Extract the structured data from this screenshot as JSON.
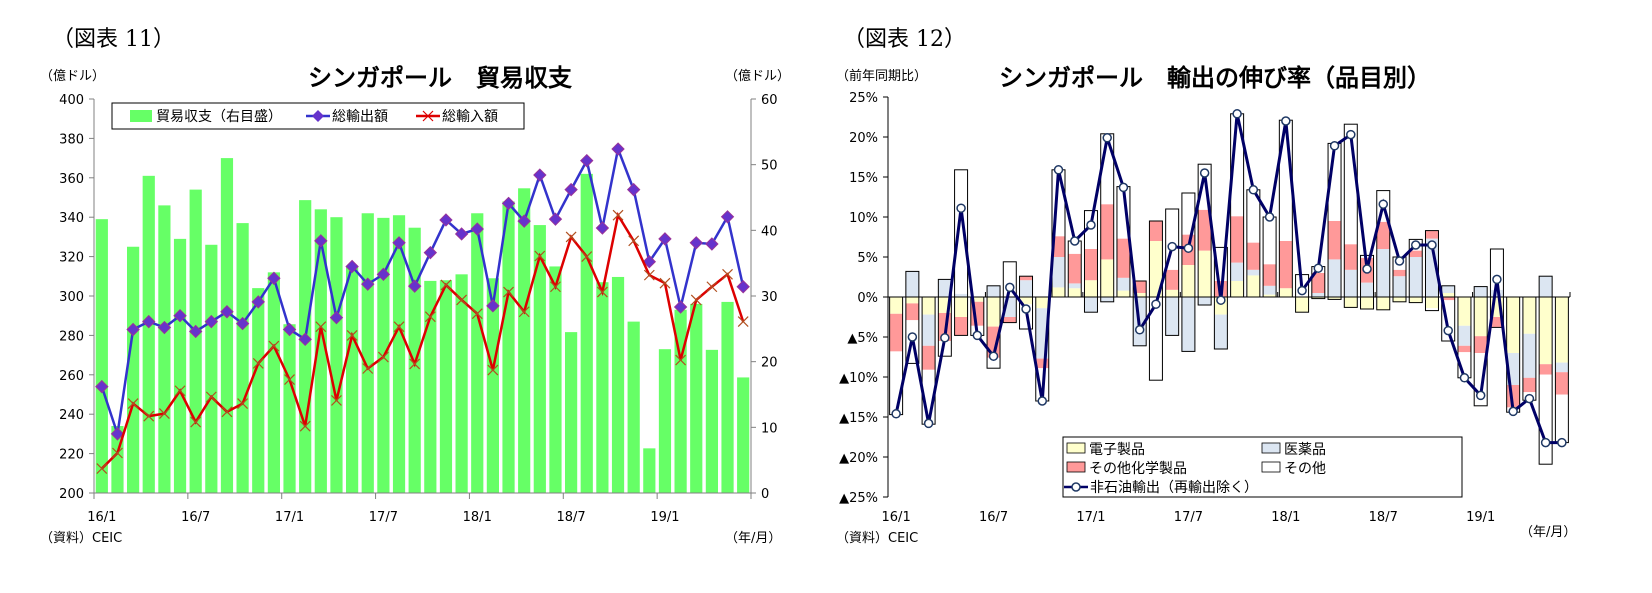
{
  "chart_data": [
    {
      "type": "bar+line",
      "figure_label": "（図表 11）",
      "title": "シンガポール　貿易収支",
      "ylabel_left": "（億ドル）",
      "ylabel_right": "（億ドル）",
      "xlabel": "（年/月）",
      "source": "（資料）CEIC",
      "ylim_left": [
        200,
        400
      ],
      "yticks_left": [
        200,
        220,
        240,
        260,
        280,
        300,
        320,
        340,
        360,
        380,
        400
      ],
      "ylim_right": [
        0,
        60
      ],
      "yticks_right": [
        0,
        10,
        20,
        30,
        40,
        50,
        60
      ],
      "x_tick_labels": [
        "16/1",
        "16/7",
        "17/1",
        "17/7",
        "18/1",
        "18/7",
        "19/1"
      ],
      "categories": [
        "16/1",
        "16/2",
        "16/3",
        "16/4",
        "16/5",
        "16/6",
        "16/7",
        "16/8",
        "16/9",
        "16/10",
        "16/11",
        "16/12",
        "17/1",
        "17/2",
        "17/3",
        "17/4",
        "17/5",
        "17/6",
        "17/7",
        "17/8",
        "17/9",
        "17/10",
        "17/11",
        "17/12",
        "18/1",
        "18/2",
        "18/3",
        "18/4",
        "18/5",
        "18/6",
        "18/7",
        "18/8",
        "18/9",
        "18/10",
        "18/11",
        "18/12",
        "19/1",
        "19/2",
        "19/3",
        "19/4",
        "19/5",
        "19/6"
      ],
      "legend_position": "top",
      "grid": false,
      "series": [
        {
          "name": "貿易収支（右目盛）",
          "type": "bar",
          "axis": "right",
          "color": "#66FF66",
          "values": [
            41.7,
            10.2,
            37.5,
            48.3,
            43.8,
            38.7,
            46.2,
            37.8,
            51.0,
            41.1,
            31.2,
            33.6,
            25.7,
            44.6,
            43.2,
            42.0,
            34.4,
            42.6,
            41.9,
            42.3,
            40.4,
            32.3,
            32.4,
            33.3,
            42.6,
            32.7,
            44.4,
            46.4,
            40.8,
            34.5,
            24.5,
            48.6,
            32.1,
            32.9,
            26.1,
            6.8,
            21.9,
            27.9,
            28.8,
            21.8,
            29.1,
            17.6
          ]
        },
        {
          "name": "総輸出額",
          "type": "line",
          "axis": "left",
          "color": "#3333CC",
          "marker": "diamond",
          "values": [
            254,
            230,
            283,
            287,
            284,
            290,
            282,
            287,
            292,
            286,
            297,
            309,
            283,
            278,
            328,
            289,
            315,
            306,
            311,
            327,
            305,
            322,
            338.6,
            331.5,
            334,
            295,
            347,
            338,
            361.4,
            339,
            354,
            368.7,
            334.5,
            374.6,
            354,
            317.4,
            329,
            294.4,
            327,
            326.4,
            340.2,
            304.7
          ]
        },
        {
          "name": "総輸入額",
          "type": "line",
          "axis": "left",
          "color": "#DD0000",
          "marker": "x",
          "values": [
            212.4,
            220.3,
            245.4,
            239,
            240.3,
            251.9,
            236,
            248.8,
            241.2,
            245.4,
            265.8,
            274.6,
            257.6,
            233.9,
            284.4,
            247,
            280,
            263.2,
            269,
            284.4,
            265.5,
            289.5,
            305.6,
            298,
            291,
            262.4,
            302,
            292,
            320.3,
            304.7,
            330,
            320,
            302,
            341,
            328,
            310.6,
            306.5,
            267.5,
            298,
            304.7,
            311,
            287
          ]
        }
      ]
    },
    {
      "type": "stacked-bar+line",
      "figure_label": "（図表 12）",
      "title": "シンガポール　輸出の伸び率（品目別）",
      "ylabel": "（前年同期比）",
      "xlabel": "（年/月）",
      "source": "（資料）CEIC",
      "ylim": [
        -25,
        25
      ],
      "yticks": [
        -25,
        -20,
        -15,
        -10,
        -5,
        0,
        5,
        10,
        15,
        20,
        25
      ],
      "ytick_labels": [
        "▲25%",
        "▲20%",
        "▲15%",
        "▲10%",
        "▲5%",
        "0%",
        "5%",
        "10%",
        "15%",
        "20%",
        "25%"
      ],
      "x_tick_labels": [
        "16/1",
        "16/7",
        "17/1",
        "17/7",
        "18/1",
        "18/7",
        "19/1"
      ],
      "categories": [
        "16/1",
        "16/2",
        "16/3",
        "16/4",
        "16/5",
        "16/6",
        "16/7",
        "16/8",
        "16/9",
        "16/10",
        "16/11",
        "16/12",
        "17/1",
        "17/2",
        "17/3",
        "17/4",
        "17/5",
        "17/6",
        "17/7",
        "17/8",
        "17/9",
        "17/10",
        "17/11",
        "17/12",
        "18/1",
        "18/2",
        "18/3",
        "18/4",
        "18/5",
        "18/6",
        "18/7",
        "18/8",
        "18/9",
        "18/10",
        "18/11",
        "18/12",
        "19/1",
        "19/2",
        "19/3",
        "19/4",
        "19/5",
        "19/6"
      ],
      "legend_position": "bottom-center",
      "grid": false,
      "series": [
        {
          "name": "電子製品",
          "type": "bar",
          "color": "#FFFFCC",
          "values": [
            -2.1,
            -0.8,
            -2.2,
            -2.0,
            -2.5,
            -0.6,
            -3.7,
            0,
            -0.9,
            -1.4,
            1.2,
            1.1,
            2.1,
            4.7,
            0.8,
            0.5,
            7.0,
            0.9,
            4.0,
            5.8,
            -2.2,
            2.0,
            2.7,
            0.3,
            1.1,
            -1.9,
            -0.2,
            -0.3,
            -1.3,
            -1.5,
            -1.6,
            -0.6,
            -0.7,
            -1.4,
            0.5,
            -3.6,
            -4.9,
            -2.5,
            -7.0,
            -4.6,
            -8.4,
            -8.2
          ]
        },
        {
          "name": "医薬品",
          "type": "bar",
          "color": "#DCE6F2",
          "values": [
            0,
            3.2,
            -3.9,
            2.2,
            0.4,
            0,
            1.4,
            -2.5,
            2.1,
            -6.3,
            3.8,
            0.6,
            -1.9,
            -0.6,
            1.6,
            -6.1,
            0,
            -4.8,
            -6.8,
            -1.0,
            -4.3,
            2.3,
            0.7,
            1.1,
            0,
            0,
            0.5,
            4.7,
            3.4,
            1.8,
            6.0,
            2.6,
            5.0,
            7.3,
            0.9,
            -2.5,
            1.3,
            0.9,
            -4.0,
            -5.5,
            2.6,
            -1.2
          ]
        },
        {
          "name": "その他化学製品",
          "type": "bar",
          "color": "#FF9999",
          "values": [
            -4.7,
            -2.1,
            -3.0,
            -3.5,
            -2.3,
            -3.0,
            -3.9,
            -0.7,
            0.5,
            -1.2,
            2.6,
            3.7,
            3.9,
            6.9,
            4.9,
            1.5,
            2.5,
            2.5,
            3.8,
            5.1,
            2.0,
            5.8,
            3.4,
            2.7,
            5.9,
            0,
            2.5,
            4.8,
            3.2,
            3.1,
            3.4,
            0.8,
            0.8,
            1.0,
            -0.4,
            -0.8,
            -2.1,
            -1.3,
            -2.8,
            -1.8,
            -1.3,
            -2.8
          ]
        },
        {
          "name": "その他",
          "type": "bar",
          "color": "#FFFFFF",
          "values": [
            -7.9,
            -5.4,
            -6.8,
            -1.9,
            15.5,
            -1.2,
            -1.3,
            4.4,
            -3.1,
            -4.1,
            8.3,
            1.6,
            4.8,
            8.8,
            6.5,
            0,
            -10.4,
            7.6,
            5.2,
            5.7,
            4.2,
            12.8,
            6.6,
            5.9,
            15.1,
            2.8,
            0.8,
            9.7,
            15.0,
            0.3,
            3.9,
            1.6,
            1.4,
            -0.3,
            -5.1,
            -3.2,
            -6.6,
            5.1,
            -0.6,
            -1.0,
            -11.2,
            -6.0
          ]
        },
        {
          "name": "非石油輸出（再輸出除く）",
          "type": "line",
          "color": "#000066",
          "marker": "circle",
          "values": [
            -14.6,
            -5.0,
            -15.8,
            -5.1,
            11.1,
            -4.8,
            -7.4,
            1.2,
            -1.5,
            -13.0,
            15.9,
            7.0,
            9.0,
            19.9,
            13.7,
            -4.1,
            -0.9,
            6.3,
            6.1,
            15.5,
            -0.4,
            22.9,
            13.4,
            10.0,
            22.0,
            0.8,
            3.6,
            18.9,
            20.3,
            3.5,
            11.6,
            4.5,
            6.5,
            6.5,
            -4.2,
            -10.1,
            -12.3,
            2.2,
            -14.3,
            -12.7,
            -18.2,
            -18.2
          ]
        }
      ]
    }
  ]
}
